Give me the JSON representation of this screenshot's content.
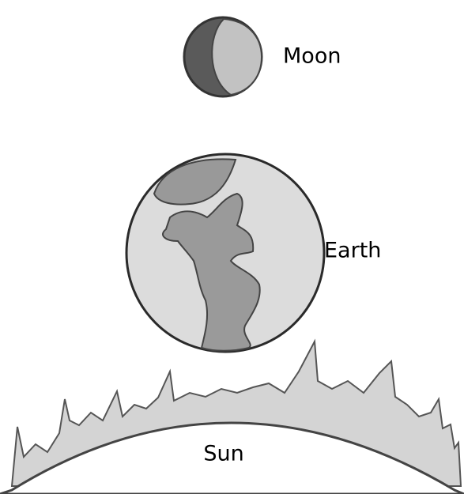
{
  "labels": {
    "moon": "Moon",
    "earth": "Earth",
    "sun": "Sun"
  }
}
